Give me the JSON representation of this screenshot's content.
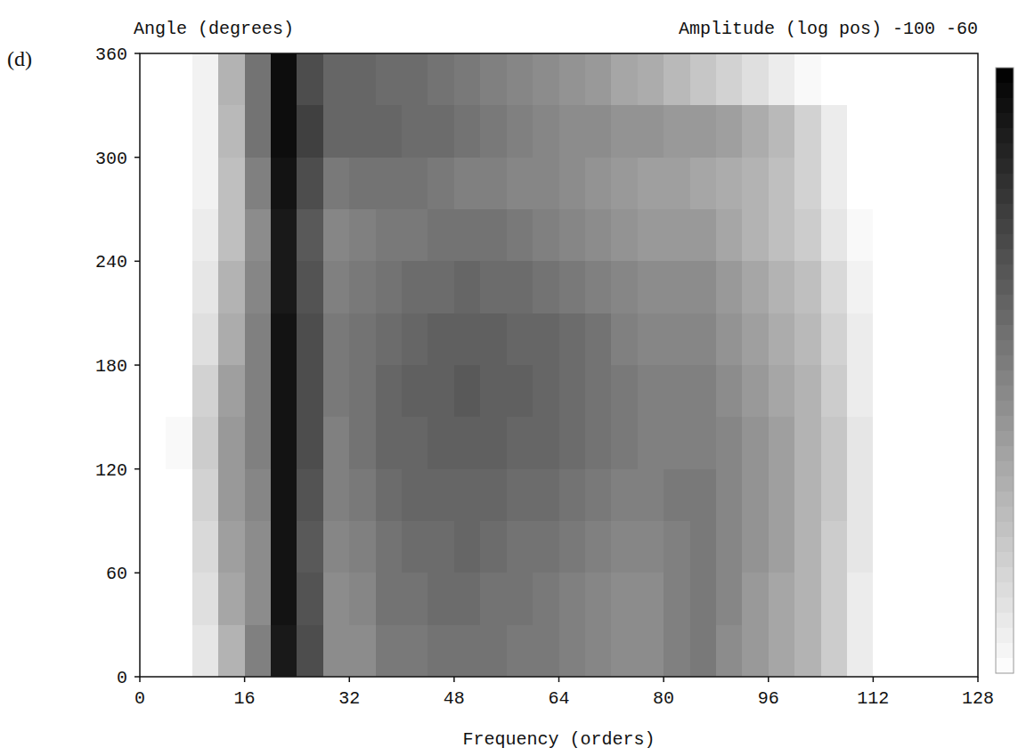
{
  "chart_data": {
    "type": "heatmap",
    "panel": "(d)",
    "ylabel": "Angle (degrees)",
    "xlabel": "Frequency (orders)",
    "colorbar": {
      "label": "Amplitude (log pos)",
      "range": [
        -100,
        -60
      ]
    },
    "log": "y",
    "xlim": [
      0,
      128
    ],
    "ylim": [
      0,
      360
    ],
    "xticks": [
      0,
      16,
      32,
      48,
      64,
      80,
      96,
      112,
      128
    ],
    "yticks": [
      0,
      60,
      120,
      180,
      240,
      300,
      360
    ],
    "x": [
      2,
      6,
      10,
      14,
      18,
      22,
      26,
      30,
      34,
      38,
      42,
      46,
      50,
      54,
      58,
      62,
      66,
      70,
      74,
      78,
      82,
      86,
      90,
      94,
      98,
      102,
      106,
      110,
      114,
      118,
      122,
      126
    ],
    "y": [
      15,
      45,
      75,
      105,
      135,
      165,
      195,
      225,
      255,
      285,
      315,
      345
    ],
    "values": [
      [
        -100,
        -100,
        -96,
        -88,
        -80,
        -64,
        -72,
        -82,
        -82,
        -79,
        -79,
        -78,
        -78,
        -78,
        -79,
        -79,
        -80,
        -81,
        -82,
        -82,
        -80,
        -79,
        -82,
        -84,
        -86,
        -88,
        -92,
        -97,
        -100,
        -100,
        -100,
        -100
      ],
      [
        -100,
        -100,
        -95,
        -86,
        -82,
        -63,
        -73,
        -82,
        -81,
        -78,
        -78,
        -77,
        -77,
        -78,
        -78,
        -79,
        -80,
        -81,
        -82,
        -82,
        -80,
        -79,
        -81,
        -84,
        -86,
        -88,
        -92,
        -97,
        -100,
        -100,
        -100,
        -100
      ],
      [
        -100,
        -100,
        -94,
        -85,
        -82,
        -63,
        -74,
        -81,
        -80,
        -78,
        -77,
        -77,
        -76,
        -77,
        -78,
        -78,
        -79,
        -80,
        -81,
        -81,
        -80,
        -79,
        -81,
        -83,
        -85,
        -88,
        -92,
        -96,
        -100,
        -100,
        -100,
        -100
      ],
      [
        -100,
        -100,
        -93,
        -84,
        -81,
        -63,
        -73,
        -80,
        -79,
        -77,
        -76,
        -76,
        -76,
        -76,
        -77,
        -77,
        -78,
        -79,
        -80,
        -80,
        -79,
        -79,
        -81,
        -83,
        -85,
        -88,
        -91,
        -96,
        -100,
        -100,
        -100,
        -100
      ],
      [
        -100,
        -99,
        -92,
        -84,
        -80,
        -63,
        -72,
        -80,
        -78,
        -76,
        -76,
        -75,
        -75,
        -75,
        -76,
        -76,
        -77,
        -78,
        -79,
        -80,
        -80,
        -80,
        -81,
        -83,
        -85,
        -88,
        -91,
        -96,
        -100,
        -100,
        -100,
        -100
      ],
      [
        -100,
        -100,
        -93,
        -85,
        -80,
        -63,
        -72,
        -79,
        -78,
        -76,
        -75,
        -75,
        -74,
        -75,
        -75,
        -76,
        -77,
        -78,
        -79,
        -80,
        -80,
        -80,
        -82,
        -84,
        -86,
        -88,
        -92,
        -97,
        -100,
        -100,
        -100,
        -100
      ],
      [
        -100,
        -100,
        -95,
        -87,
        -80,
        -63,
        -72,
        -79,
        -78,
        -77,
        -76,
        -75,
        -75,
        -75,
        -76,
        -76,
        -77,
        -78,
        -80,
        -81,
        -81,
        -81,
        -83,
        -85,
        -87,
        -89,
        -93,
        -97,
        -100,
        -100,
        -100,
        -100
      ],
      [
        -100,
        -100,
        -96,
        -88,
        -81,
        -64,
        -73,
        -80,
        -79,
        -78,
        -77,
        -77,
        -76,
        -77,
        -77,
        -78,
        -79,
        -80,
        -81,
        -82,
        -82,
        -82,
        -84,
        -86,
        -88,
        -90,
        -94,
        -98,
        -100,
        -100,
        -100,
        -100
      ],
      [
        -100,
        -100,
        -97,
        -90,
        -82,
        -64,
        -74,
        -81,
        -80,
        -79,
        -79,
        -78,
        -78,
        -78,
        -79,
        -80,
        -81,
        -82,
        -83,
        -84,
        -84,
        -84,
        -86,
        -88,
        -90,
        -92,
        -96,
        -99,
        -100,
        -100,
        -100,
        -100
      ],
      [
        -100,
        -100,
        -98,
        -90,
        -80,
        -63,
        -72,
        -79,
        -78,
        -78,
        -78,
        -79,
        -80,
        -80,
        -81,
        -81,
        -82,
        -83,
        -84,
        -85,
        -85,
        -86,
        -87,
        -88,
        -90,
        -93,
        -97,
        -100,
        -100,
        -100,
        -100,
        -100
      ],
      [
        -100,
        -100,
        -98,
        -89,
        -78,
        -62,
        -70,
        -76,
        -76,
        -76,
        -77,
        -77,
        -78,
        -79,
        -80,
        -81,
        -82,
        -82,
        -83,
        -83,
        -84,
        -84,
        -85,
        -87,
        -89,
        -93,
        -97,
        -100,
        -100,
        -100,
        -100,
        -100
      ],
      [
        -100,
        -100,
        -98,
        -88,
        -78,
        -62,
        -72,
        -76,
        -76,
        -77,
        -77,
        -78,
        -79,
        -80,
        -81,
        -82,
        -83,
        -84,
        -86,
        -87,
        -89,
        -91,
        -93,
        -95,
        -97,
        -99,
        -100,
        -100,
        -100,
        -100,
        -100,
        -100
      ]
    ]
  }
}
